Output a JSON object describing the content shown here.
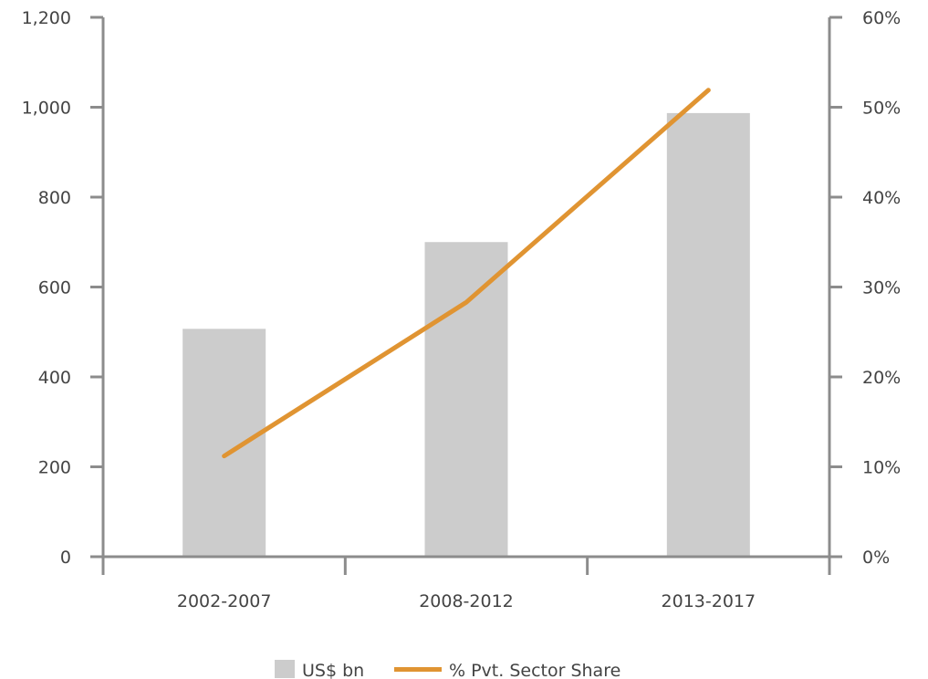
{
  "chart_data": {
    "type": "bar",
    "categories": [
      "2002-2007",
      "2008-2012",
      "2013-2017"
    ],
    "series": [
      {
        "name": "US$ bn",
        "type": "bar",
        "axis": "left",
        "values": [
          507,
          700,
          987
        ]
      },
      {
        "name": "% Pvt. Sector Share",
        "type": "line",
        "axis": "right",
        "values": [
          11.2,
          28.3,
          51.9
        ]
      }
    ],
    "left_axis": {
      "ylim": [
        0,
        1200
      ],
      "ticks": [
        "0",
        "200",
        "400",
        "600",
        "800",
        "1,000",
        "1,200"
      ]
    },
    "right_axis": {
      "ylim": [
        0,
        60
      ],
      "ticks": [
        "0%",
        "10%",
        "20%",
        "30%",
        "40%",
        "50%",
        "60%"
      ]
    },
    "grid": false,
    "legend_position": "bottom"
  },
  "colors": {
    "bar": "#cccccc",
    "line": "#e09432",
    "axis": "#8c8c8c",
    "text": "#444444"
  }
}
